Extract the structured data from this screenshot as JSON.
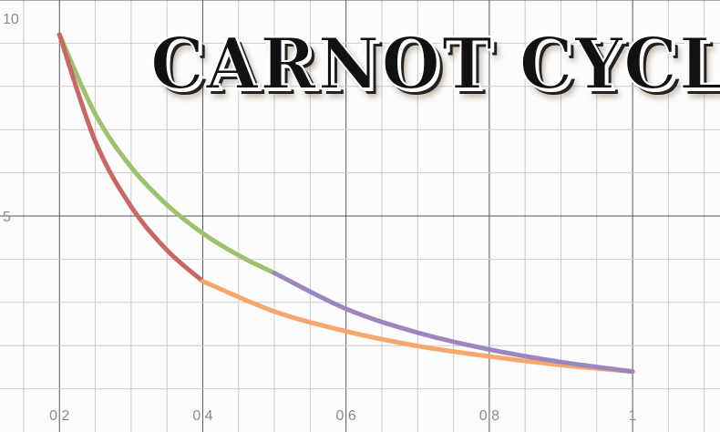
{
  "chart_data": {
    "type": "line",
    "title": "CARNOT CYCLE",
    "xlim": [
      0.117,
      1.122
    ],
    "ylim": [
      0,
      10
    ],
    "x_ticks": [
      "0.2",
      "0.4",
      "0.6",
      "0.8",
      "1"
    ],
    "x_tick_values": [
      0.2,
      0.4,
      0.6,
      0.8,
      1
    ],
    "y_ticks": [
      "5",
      "10"
    ],
    "y_tick_values": [
      5,
      10
    ],
    "grid": true,
    "minor_grid_x": 0.05,
    "minor_grid_y": 1,
    "series": [
      {
        "color": "#9dc16c",
        "x": [
          0.2,
          0.25,
          0.3,
          0.35,
          0.4,
          0.45,
          0.5
        ],
        "y": [
          9.2,
          7.36,
          6.13,
          5.26,
          4.6,
          4.09,
          3.68
        ]
      },
      {
        "color": "#c96764",
        "x": [
          0.2,
          0.25,
          0.3,
          0.35,
          0.4
        ],
        "y": [
          9.2,
          6.73,
          5.22,
          4.21,
          3.49
        ]
      },
      {
        "color": "#f7a66c",
        "x": [
          0.4,
          0.5,
          0.6,
          0.7,
          0.8,
          0.9,
          1.0
        ],
        "y": [
          3.49,
          2.79,
          2.33,
          1.99,
          1.75,
          1.55,
          1.4
        ]
      },
      {
        "color": "#9c86bf",
        "x": [
          0.5,
          0.6,
          0.7,
          0.8,
          0.9,
          1.0
        ],
        "y": [
          3.68,
          2.85,
          2.3,
          1.91,
          1.62,
          1.4
        ]
      }
    ]
  }
}
